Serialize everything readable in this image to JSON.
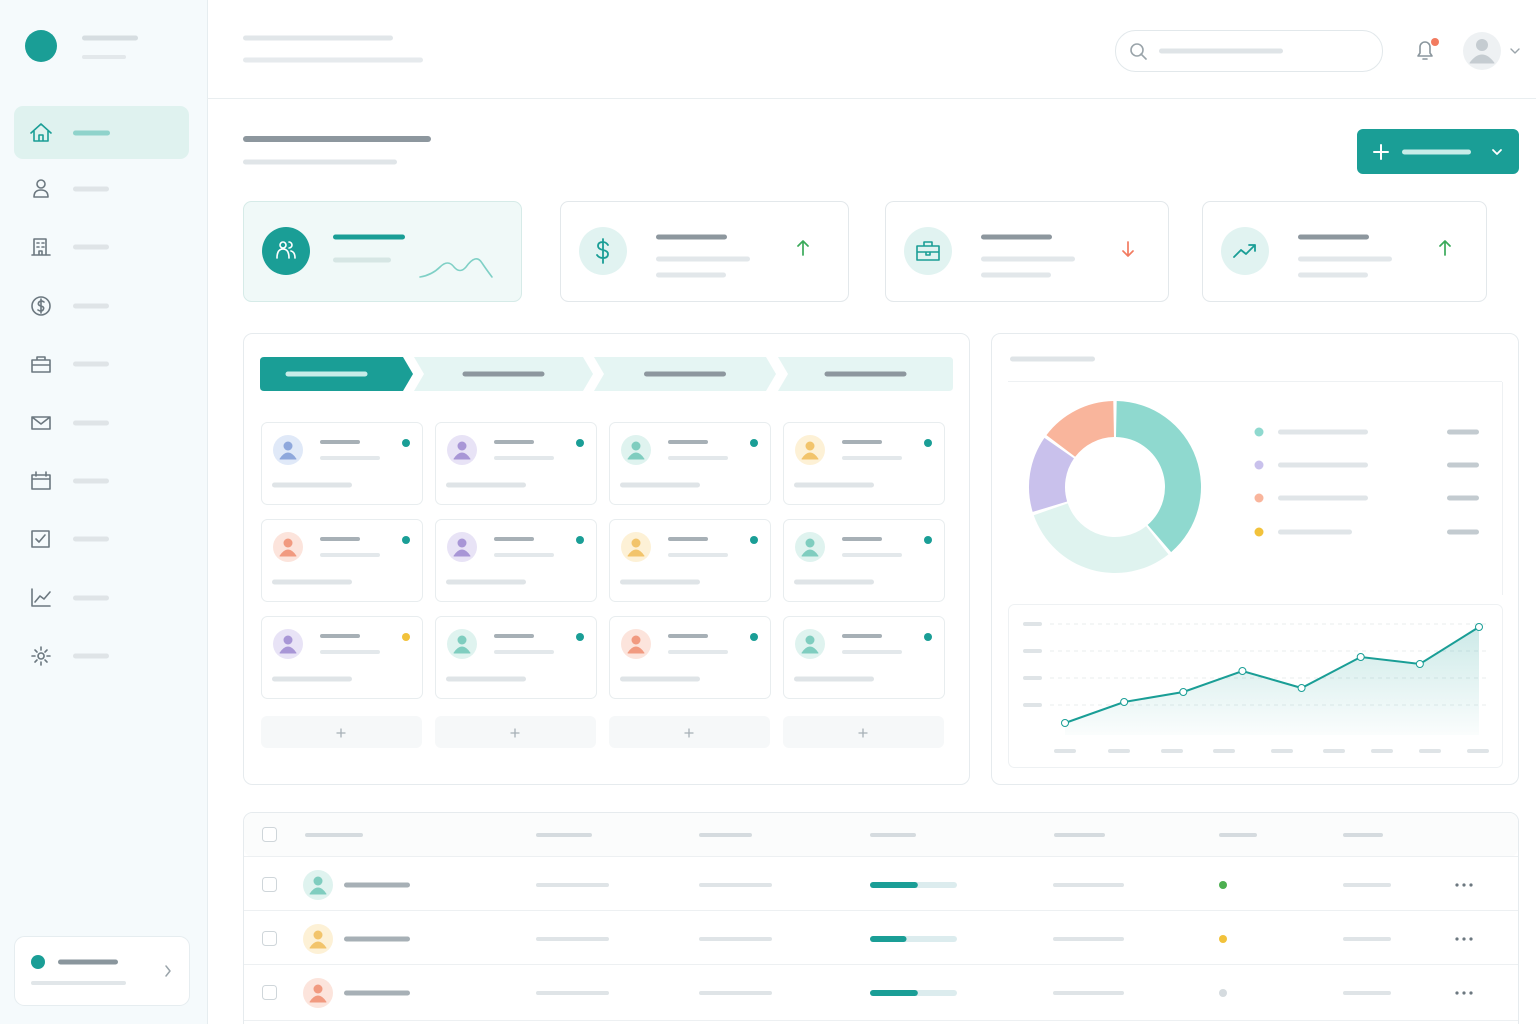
{
  "chart_data": [
    {
      "type": "pie",
      "values": [
        39,
        31,
        15,
        15
      ],
      "colors": [
        "#8fd9cf",
        "#dff3ef",
        "#c9c1ec",
        "#f9b59c"
      ]
    },
    {
      "type": "line",
      "categories": [
        null,
        null,
        null,
        null,
        null,
        null,
        null,
        null
      ],
      "values": [
        12,
        33,
        43,
        64,
        47,
        78,
        71,
        108
      ],
      "ylim": [
        0,
        120
      ],
      "color": "#1a9e96"
    }
  ],
  "table": {
    "progress": [
      55,
      42,
      55
    ]
  }
}
